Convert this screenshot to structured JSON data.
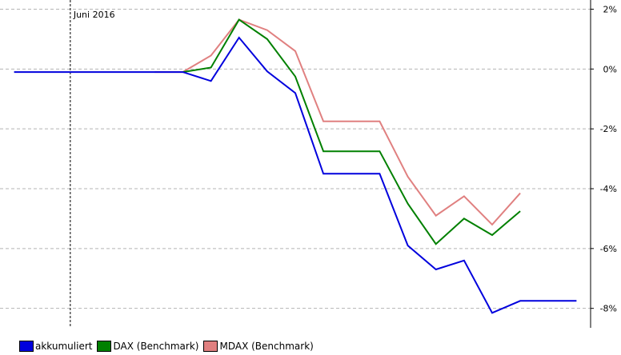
{
  "chart_data": {
    "type": "line",
    "x": [
      1,
      2,
      3,
      4,
      5,
      6,
      7,
      8,
      9,
      10,
      11,
      12,
      13,
      14,
      15,
      16,
      17,
      18,
      19,
      20,
      21
    ],
    "annotation": {
      "label": "Juni 2016",
      "x": 3
    },
    "y_ticks": [
      {
        "value": 2,
        "label": "2%"
      },
      {
        "value": 0,
        "label": "0%"
      },
      {
        "value": -2,
        "label": "-2%"
      },
      {
        "value": -4,
        "label": "-4%"
      },
      {
        "value": -6,
        "label": "-6%"
      },
      {
        "value": -8,
        "label": "-8%"
      }
    ],
    "ylim": [
      -8.65,
      2.2
    ],
    "xlim": [
      0.5,
      21.5
    ],
    "grid": true,
    "series": [
      {
        "name": "akkumuliert",
        "color": "#0000dd",
        "values": [
          -0.1,
          -0.1,
          -0.1,
          -0.1,
          -0.1,
          -0.1,
          -0.1,
          -0.4,
          1.05,
          -0.08,
          -0.8,
          -3.5,
          -3.5,
          -3.5,
          -5.9,
          -6.7,
          -6.4,
          -8.15,
          -7.75,
          -7.75,
          -7.75
        ]
      },
      {
        "name": "DAX (Benchmark)",
        "color": "#008000",
        "values": [
          null,
          null,
          null,
          null,
          null,
          null,
          -0.1,
          0.05,
          1.65,
          1.0,
          -0.25,
          -2.75,
          -2.75,
          -2.75,
          -4.5,
          -5.85,
          -5.0,
          -5.55,
          -4.75,
          null,
          null
        ]
      },
      {
        "name": "MDAX (Benchmark)",
        "color": "#e08080",
        "values": [
          null,
          null,
          null,
          null,
          null,
          -0.1,
          -0.1,
          0.45,
          1.65,
          1.3,
          0.6,
          -1.75,
          -1.75,
          -1.75,
          -3.6,
          -4.9,
          -4.25,
          -5.2,
          -4.15,
          null,
          null
        ]
      }
    ]
  }
}
